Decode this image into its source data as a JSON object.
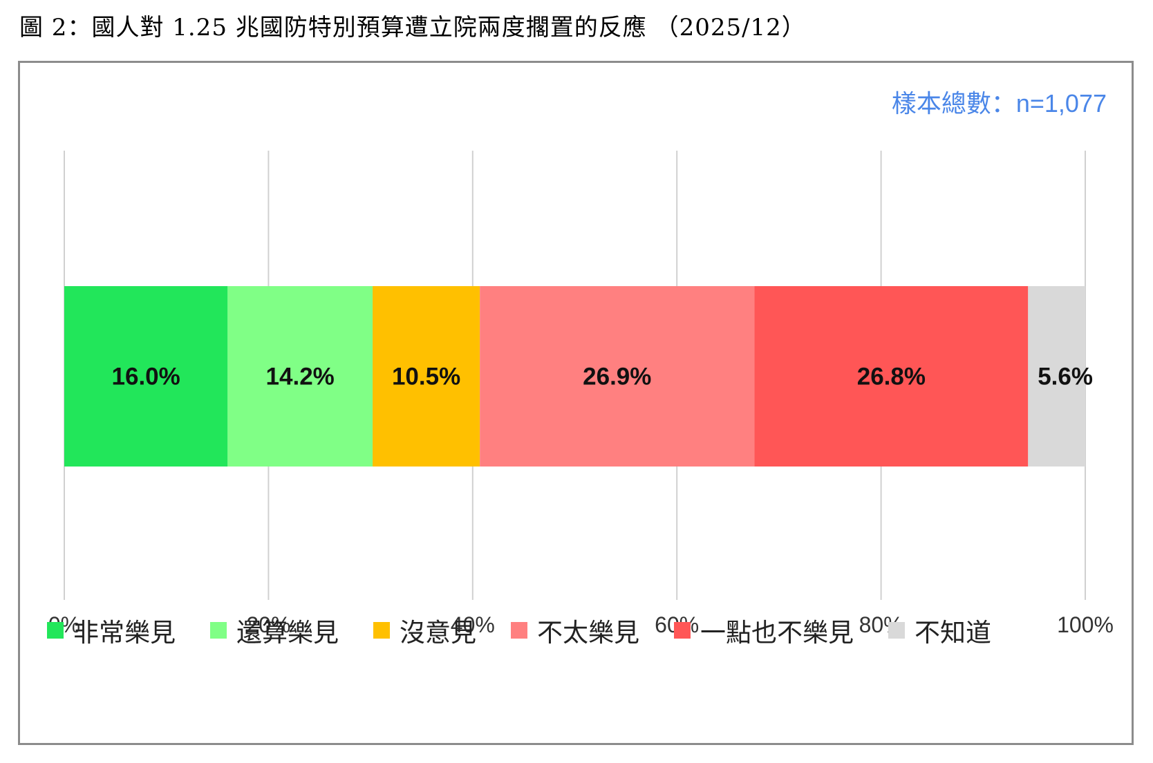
{
  "title": "圖 2：國人對 1.25 兆國防特別預算遭立院兩度擱置的反應 （2025/12）",
  "sample_size": "樣本總數：n=1,077",
  "chart_data": {
    "type": "bar",
    "orientation": "horizontal-stacked",
    "xlim": [
      0,
      100
    ],
    "x_ticks": [
      "0%",
      "20%",
      "40%",
      "60%",
      "80%",
      "100%"
    ],
    "grid": true,
    "legend_position": "bottom",
    "series": [
      {
        "name": "非常樂見",
        "value": 16.0,
        "label": "16.0%",
        "color": "#22e65a"
      },
      {
        "name": "還算樂見",
        "value": 14.2,
        "label": "14.2%",
        "color": "#80ff86"
      },
      {
        "name": "沒意見",
        "value": 10.5,
        "label": "10.5%",
        "color": "#ffc000"
      },
      {
        "name": "不太樂見",
        "value": 26.9,
        "label": "26.9%",
        "color": "#ff8080"
      },
      {
        "name": "一點也不樂見",
        "value": 26.8,
        "label": "26.8%",
        "color": "#ff5656"
      },
      {
        "name": "不知道",
        "value": 5.6,
        "label": "5.6%",
        "color": "#d9d9d9"
      }
    ]
  }
}
